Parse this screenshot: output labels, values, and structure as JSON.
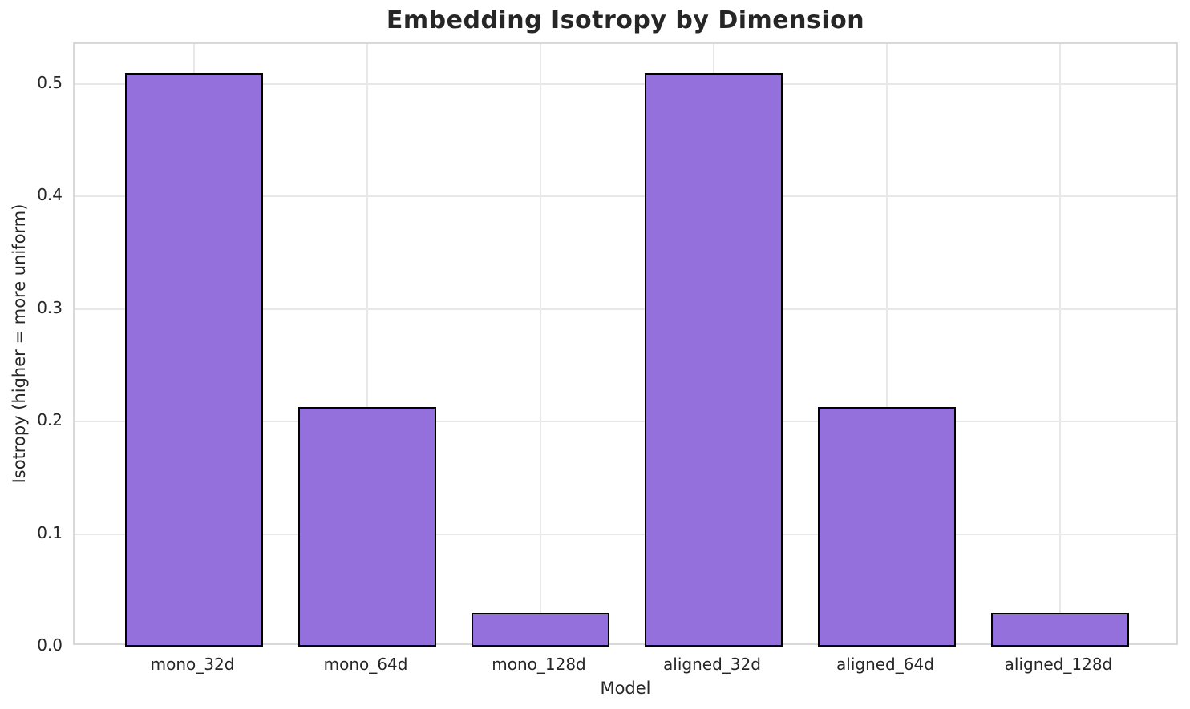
{
  "chart_data": {
    "type": "bar",
    "title": "Embedding Isotropy by Dimension",
    "xlabel": "Model",
    "ylabel": "Isotropy (higher = more uniform)",
    "categories": [
      "mono_32d",
      "mono_64d",
      "mono_128d",
      "aligned_32d",
      "aligned_64d",
      "aligned_128d"
    ],
    "values": [
      0.51,
      0.213,
      0.03,
      0.51,
      0.213,
      0.03
    ],
    "ytick_labels": [
      "0.0",
      "0.1",
      "0.2",
      "0.3",
      "0.4",
      "0.5"
    ],
    "ytick_values": [
      0.0,
      0.1,
      0.2,
      0.3,
      0.4,
      0.5
    ],
    "ylim": [
      0,
      0.5355
    ],
    "grid": true,
    "legend_position": "none",
    "colors": {
      "bar_fill": "#9370DB",
      "bar_edge": "#000000",
      "grid_line": "#e8e8e8",
      "spine": "#d9d9d9",
      "text": "#262626",
      "background": "#ffffff"
    }
  }
}
